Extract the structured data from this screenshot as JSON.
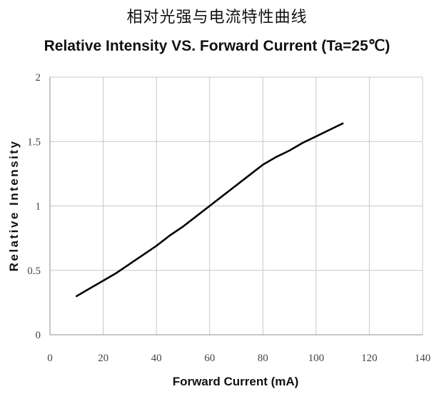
{
  "header": {
    "title_cn": "相对光强与电流特性曲线",
    "title_en": "Relative Intensity VS. Forward Current  (Ta=25℃)"
  },
  "chart_data": {
    "type": "line",
    "xlabel": "Forward Current (mA)",
    "ylabel": "Relative Intensity",
    "xlim": [
      0,
      140
    ],
    "ylim": [
      0,
      2
    ],
    "xticks": [
      0,
      20,
      40,
      60,
      80,
      100,
      120,
      140
    ],
    "yticks": [
      0,
      0.5,
      1,
      1.5,
      2
    ],
    "ytick_labels": [
      "0",
      "0.5",
      "1",
      "1.5",
      "2"
    ],
    "grid": true,
    "legend": "none",
    "line_color": "#000000",
    "grid_color": "#c8c8c8",
    "series": [
      {
        "x": [
          10,
          15,
          20,
          25,
          30,
          35,
          40,
          45,
          50,
          55,
          60,
          65,
          70,
          75,
          80,
          85,
          90,
          95,
          100,
          105,
          110
        ],
        "y": [
          0.3,
          0.36,
          0.42,
          0.48,
          0.55,
          0.62,
          0.69,
          0.77,
          0.84,
          0.92,
          1.0,
          1.08,
          1.16,
          1.24,
          1.32,
          1.38,
          1.43,
          1.49,
          1.54,
          1.59,
          1.64
        ]
      }
    ]
  }
}
